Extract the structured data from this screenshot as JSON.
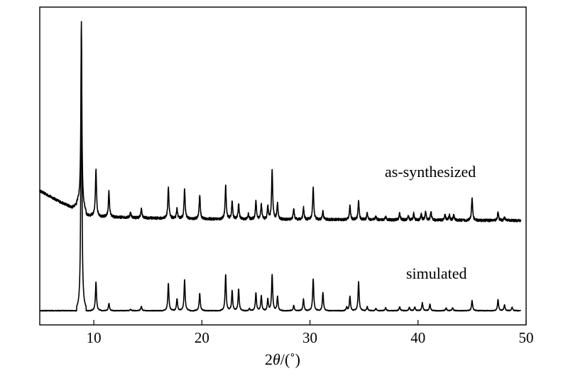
{
  "chart_data": {
    "type": "line",
    "title": "",
    "xlabel_prefix": "2",
    "xlabel_symbol": "θ",
    "xlabel_suffix": "/(˚)",
    "ylabel": "",
    "xlim": [
      5,
      50
    ],
    "ylim": [
      0,
      1
    ],
    "x_ticks": [
      10,
      20,
      30,
      40,
      50
    ],
    "y_ticks_shown": false,
    "grid": false,
    "series": [
      {
        "name": "as-synthesized",
        "baseline": [
          [
            5.0,
            0.412
          ],
          [
            6.0,
            0.392
          ],
          [
            7.0,
            0.372
          ],
          [
            8.0,
            0.356
          ],
          [
            8.6,
            0.375
          ],
          [
            9.4,
            0.33
          ],
          [
            10.5,
            0.325
          ],
          [
            12.0,
            0.322
          ],
          [
            15.0,
            0.319
          ],
          [
            20.0,
            0.316
          ],
          [
            30.0,
            0.314
          ],
          [
            40.0,
            0.312
          ],
          [
            49.5,
            0.31
          ]
        ],
        "peaks": [
          [
            8.85,
            0.6
          ],
          [
            10.2,
            0.16
          ],
          [
            11.4,
            0.087
          ],
          [
            13.4,
            0.018
          ],
          [
            14.4,
            0.032
          ],
          [
            16.9,
            0.108
          ],
          [
            17.7,
            0.035
          ],
          [
            18.4,
            0.103
          ],
          [
            19.8,
            0.082
          ],
          [
            22.2,
            0.116
          ],
          [
            22.8,
            0.062
          ],
          [
            23.4,
            0.052
          ],
          [
            24.3,
            0.018
          ],
          [
            25.0,
            0.062
          ],
          [
            25.5,
            0.052
          ],
          [
            26.1,
            0.045
          ],
          [
            26.5,
            0.168
          ],
          [
            27.0,
            0.058
          ],
          [
            28.5,
            0.036
          ],
          [
            29.4,
            0.042
          ],
          [
            30.3,
            0.111
          ],
          [
            31.2,
            0.028
          ],
          [
            33.7,
            0.049
          ],
          [
            34.5,
            0.066
          ],
          [
            35.3,
            0.024
          ],
          [
            36.1,
            0.012
          ],
          [
            37.0,
            0.012
          ],
          [
            38.3,
            0.025
          ],
          [
            39.1,
            0.012
          ],
          [
            39.6,
            0.023
          ],
          [
            40.3,
            0.02
          ],
          [
            40.7,
            0.028
          ],
          [
            41.2,
            0.028
          ],
          [
            42.5,
            0.018
          ],
          [
            42.9,
            0.018
          ],
          [
            43.3,
            0.018
          ],
          [
            45.0,
            0.075
          ],
          [
            47.4,
            0.028
          ],
          [
            48.0,
            0.012
          ]
        ]
      },
      {
        "name": "simulated",
        "baseline": [
          [
            5.0,
            0.0
          ],
          [
            49.5,
            0.0
          ]
        ],
        "peaks": [
          [
            8.85,
            0.995
          ],
          [
            10.2,
            0.098
          ],
          [
            11.4,
            0.025
          ],
          [
            13.4,
            0.005
          ],
          [
            14.4,
            0.015
          ],
          [
            16.9,
            0.094
          ],
          [
            17.7,
            0.042
          ],
          [
            18.4,
            0.107
          ],
          [
            19.8,
            0.06
          ],
          [
            22.2,
            0.125
          ],
          [
            22.8,
            0.07
          ],
          [
            23.4,
            0.075
          ],
          [
            24.4,
            0.008
          ],
          [
            25.0,
            0.062
          ],
          [
            25.5,
            0.052
          ],
          [
            26.1,
            0.04
          ],
          [
            26.5,
            0.125
          ],
          [
            27.0,
            0.05
          ],
          [
            28.5,
            0.018
          ],
          [
            29.4,
            0.04
          ],
          [
            30.3,
            0.11
          ],
          [
            31.2,
            0.063
          ],
          [
            33.4,
            0.012
          ],
          [
            33.7,
            0.049
          ],
          [
            34.5,
            0.1
          ],
          [
            35.3,
            0.014
          ],
          [
            36.1,
            0.008
          ],
          [
            37.0,
            0.01
          ],
          [
            38.3,
            0.014
          ],
          [
            39.2,
            0.012
          ],
          [
            39.7,
            0.013
          ],
          [
            40.4,
            0.028
          ],
          [
            41.1,
            0.022
          ],
          [
            42.6,
            0.01
          ],
          [
            43.2,
            0.01
          ],
          [
            45.0,
            0.035
          ],
          [
            47.4,
            0.038
          ],
          [
            48.0,
            0.02
          ],
          [
            48.7,
            0.012
          ]
        ]
      }
    ]
  }
}
